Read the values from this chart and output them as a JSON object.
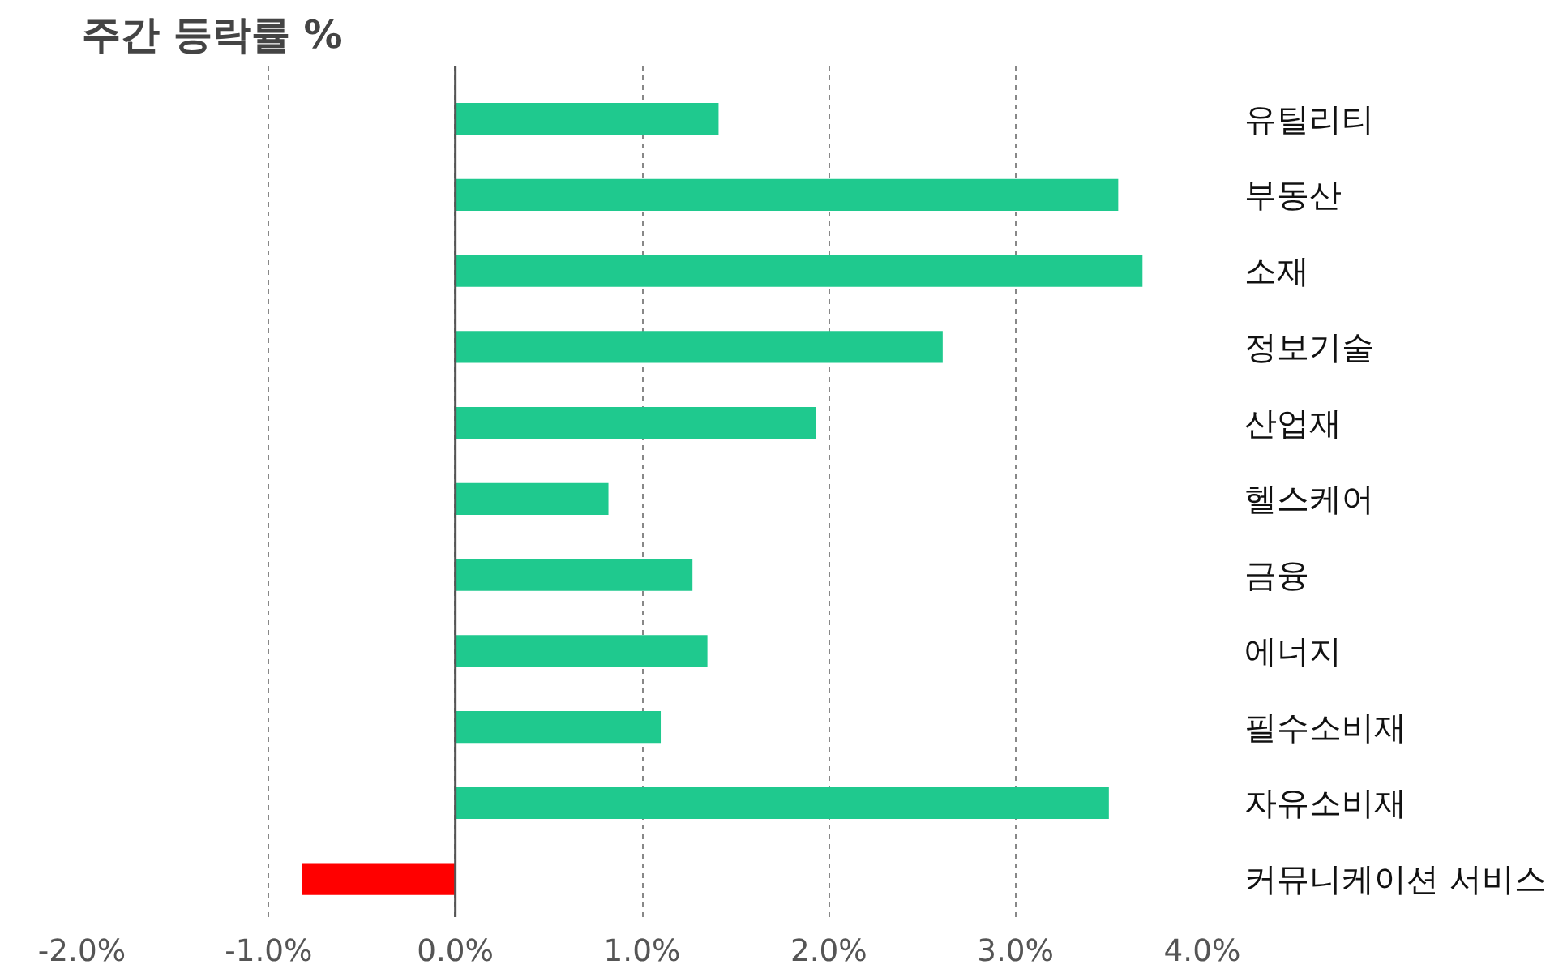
{
  "chart_data": {
    "type": "bar",
    "orientation": "horizontal",
    "title": "주간 등락률 %",
    "categories": [
      "유틸리티",
      "부동산",
      "소재",
      "정보기술",
      "산업재",
      "헬스케어",
      "금융",
      "에너지",
      "필수소비재",
      "자유소비재",
      "커뮤니케이션 서비스"
    ],
    "values": [
      1.41,
      3.55,
      3.68,
      2.61,
      1.93,
      0.82,
      1.27,
      1.35,
      1.1,
      3.5,
      -0.82
    ],
    "colors": [
      "#1fc98e",
      "#1fc98e",
      "#1fc98e",
      "#1fc98e",
      "#1fc98e",
      "#1fc98e",
      "#1fc98e",
      "#1fc98e",
      "#1fc98e",
      "#1fc98e",
      "#ff0000"
    ],
    "xlim": [
      -2,
      4
    ],
    "xticks": [
      {
        "value": -2,
        "label": "-2.0%"
      },
      {
        "value": -1,
        "label": "-1.0%"
      },
      {
        "value": 0,
        "label": "0.0%"
      },
      {
        "value": 1,
        "label": "1.0%"
      },
      {
        "value": 2,
        "label": "2.0%"
      },
      {
        "value": 3,
        "label": "3.0%"
      },
      {
        "value": 4,
        "label": "4.0%"
      }
    ],
    "grid": "x",
    "ref_lines": [
      {
        "axis": "x",
        "value": 0,
        "color": "#555555",
        "line_style": "solid"
      }
    ]
  }
}
